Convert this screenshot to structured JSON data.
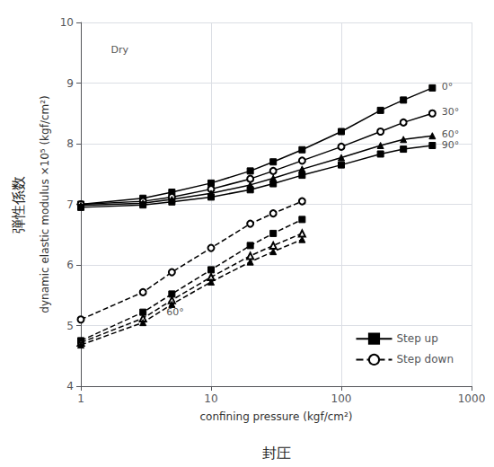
{
  "chart_data": {
    "type": "line",
    "xlabel": "confining pressure (kgf/cm²)",
    "ylabel": "dynamic elastic modulus ×10⁵ (kgf/cm²)",
    "xlabel_bottom": "封圧",
    "ylabel_left": "弾性係数",
    "log": "x",
    "xlim": [
      1,
      1000
    ],
    "ylim": [
      4,
      10
    ],
    "xticks": [
      1,
      10,
      100,
      1000
    ],
    "yticks": [
      4,
      5,
      6,
      7,
      8,
      9,
      10
    ],
    "grid": true,
    "legend": "lower right",
    "series": [
      {
        "name": "Step up",
        "color": "black",
        "marker": "square",
        "line_style": "solid",
        "x": [
          1,
          3,
          5,
          10,
          20,
          30,
          50,
          100,
          200,
          300,
          500
        ],
        "values": [
          7.0,
          7.1,
          7.2,
          7.35,
          7.55,
          7.7,
          7.9,
          8.2,
          8.55,
          8.72,
          8.92
        ]
      },
      {
        "name": "Step up",
        "color": "black",
        "marker": "circle_open",
        "line_style": "solid",
        "x": [
          1,
          3,
          5,
          10,
          20,
          30,
          50,
          100,
          200,
          300,
          500
        ],
        "values": [
          7.0,
          7.05,
          7.12,
          7.25,
          7.42,
          7.55,
          7.72,
          7.95,
          8.2,
          8.35,
          8.5
        ]
      },
      {
        "name": "Step up",
        "color": "black",
        "marker": "triangle",
        "line_style": "solid",
        "x": [
          1,
          3,
          5,
          10,
          20,
          30,
          50,
          100,
          200,
          300,
          500
        ],
        "values": [
          6.98,
          7.02,
          7.08,
          7.18,
          7.32,
          7.43,
          7.58,
          7.77,
          7.97,
          8.07,
          8.13
        ]
      },
      {
        "name": "Step up",
        "color": "black",
        "marker": "square",
        "line_style": "solid",
        "x": [
          1,
          3,
          5,
          10,
          20,
          30,
          50,
          100,
          200,
          300,
          500
        ],
        "values": [
          6.95,
          6.99,
          7.04,
          7.12,
          7.24,
          7.34,
          7.48,
          7.65,
          7.83,
          7.91,
          7.97
        ]
      },
      {
        "name": "Step down",
        "color": "black",
        "marker": "circle_open",
        "line_style": "dashed",
        "x": [
          1,
          3,
          5,
          10,
          20,
          30,
          50
        ],
        "values": [
          5.1,
          5.55,
          5.88,
          6.28,
          6.68,
          6.85,
          7.05
        ]
      },
      {
        "name": "Step down",
        "color": "black",
        "marker": "square",
        "line_style": "dashed",
        "x": [
          1,
          3,
          5,
          10,
          20,
          30,
          50
        ],
        "values": [
          4.75,
          5.22,
          5.52,
          5.92,
          6.32,
          6.52,
          6.75
        ]
      },
      {
        "name": "Step down",
        "color": "black",
        "marker": "triangle_open",
        "line_style": "dashed",
        "x": [
          1,
          3,
          5,
          10,
          20,
          30,
          50
        ],
        "values": [
          4.72,
          5.12,
          5.42,
          5.8,
          6.15,
          6.32,
          6.52
        ]
      },
      {
        "name": "Step down",
        "color": "black",
        "marker": "triangle",
        "line_style": "dashed",
        "x": [
          1,
          3,
          5,
          10,
          20,
          30,
          50
        ],
        "values": [
          4.68,
          5.05,
          5.35,
          5.72,
          6.05,
          6.22,
          6.42
        ]
      }
    ],
    "annotations": [
      {
        "text": "0°",
        "x": 520,
        "y": 8.94
      },
      {
        "text": "30°",
        "x": 520,
        "y": 8.52
      },
      {
        "text": "60°",
        "x": 520,
        "y": 8.15
      },
      {
        "text": "90°",
        "x": 520,
        "y": 7.98
      },
      {
        "text": "60°",
        "x": 4,
        "y": 5.22
      },
      {
        "text": "Dry",
        "x": 1.5,
        "y": 9.55
      }
    ]
  }
}
